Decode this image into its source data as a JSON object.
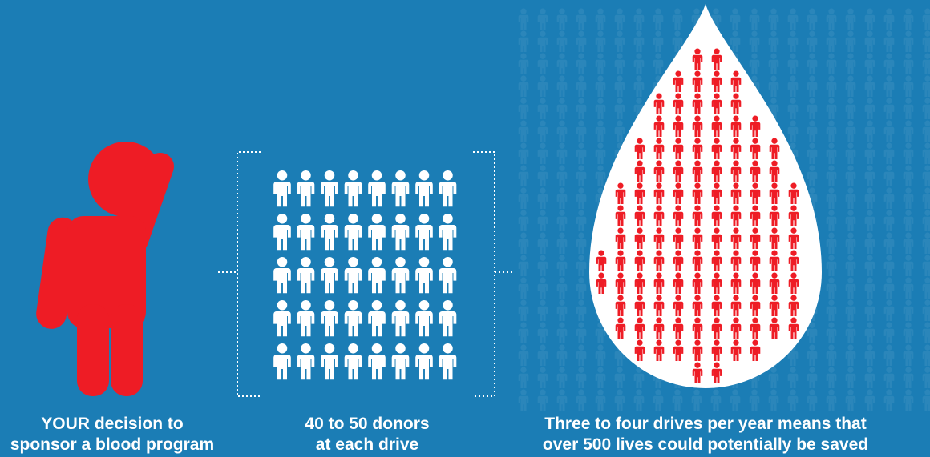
{
  "captions": [
    {
      "emphasis": "YOUR",
      "line1": "decision to",
      "line2": "sponsor a blood program"
    },
    {
      "line1": "40 to 50 donors",
      "line2": "at each drive"
    },
    {
      "line1": "Three to four drives per year means that",
      "line2": "over 500 lives could potentially be saved"
    }
  ]
}
